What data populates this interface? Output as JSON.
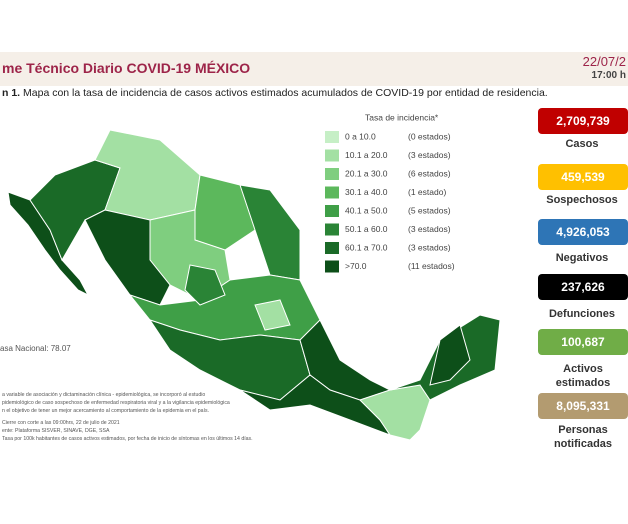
{
  "header": {
    "title": "me Técnico Diario COVID-19 MÉXICO",
    "date": "22/07/2",
    "time": "17:00 h"
  },
  "caption": {
    "label": "n 1.",
    "text": "Mapa con la tasa de incidencia de casos activos estimados acumulados de COVID-19 por entidad de residencia."
  },
  "legend": {
    "title": "Tasa de incidencia*",
    "items": [
      {
        "range": "0   a  10.0",
        "count": "(0 estados)",
        "color": "#c6efc6"
      },
      {
        "range": "10.1 a  20.0",
        "count": "(3 estados)",
        "color": "#a3e0a3"
      },
      {
        "range": "20.1 a  30.0",
        "count": "(6 estados)",
        "color": "#7fce7f"
      },
      {
        "range": "30.1 a  40.0",
        "count": "(1 estado)",
        "color": "#5cb85c"
      },
      {
        "range": "40.1 a  50.0",
        "count": "(5 estados)",
        "color": "#3f9f47"
      },
      {
        "range": "50.1 a  60.0",
        "count": "(3 estados)",
        "color": "#2a8436"
      },
      {
        "range": "60.1 a  70.0",
        "count": "(3 estados)",
        "color": "#1a6a27"
      },
      {
        "range": ">70.0",
        "count": "(11 estados)",
        "color": "#0d4f19"
      }
    ]
  },
  "national_rate": "asa Nacional: 78.07",
  "indicators": [
    {
      "value": "2,709,739",
      "label": "Casos",
      "color": "#c00000"
    },
    {
      "value": "459,539",
      "label": "Sospechosos",
      "color": "#ffc000"
    },
    {
      "value": "4,926,053",
      "label": "Negativos",
      "color": "#2e75b6"
    },
    {
      "value": "237,626",
      "label": "Defunciones",
      "color": "#000000"
    },
    {
      "value": "100,687",
      "label": "Activos estimados",
      "color": "#70ad47"
    },
    {
      "value": "8,095,331",
      "label": "Personas notificadas",
      "color": "#b39b70"
    }
  ],
  "notes": [
    "a variable de asociación y dictaminación clínica - epidemiológica, se incorporó al estudio",
    "pidemiológico de caso sospechoso de enfermedad respiratoria viral y a la vigilancia epidemiológica",
    "n el objetivo de tener un mejor acercamiento al comportamiento de la epidemia en el país.",
    "Cierre con corte a las 09:00hrs, 22 de julio de 2021",
    "ente: Plataforma SISVER, SINAVE, DGE, SSA",
    "Tasa por 100k habitantes de casos activos estimados, por fecha de inicio de síntomas en los últimos 14 días."
  ]
}
